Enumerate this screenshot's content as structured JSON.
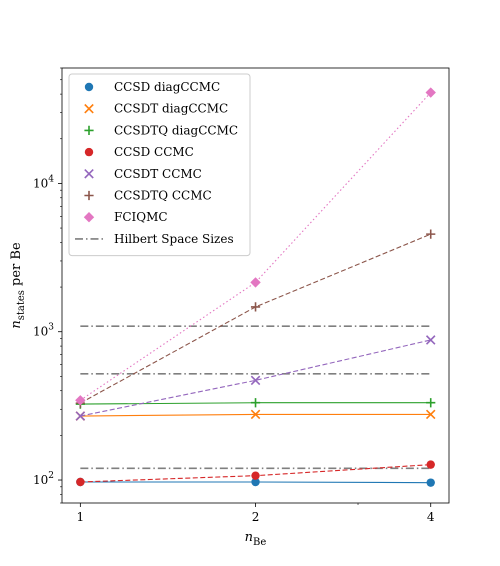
{
  "chart_data": {
    "type": "line",
    "x_scale": "log",
    "y_scale": "log",
    "xlabel": "n",
    "xlabel_sub": "Be",
    "ylabel": "n",
    "ylabel_sub": "states",
    "ylabel_suffix": " per Be",
    "xlim": [
      0.93,
      4.3
    ],
    "ylim": [
      70,
      60000
    ],
    "x_ticks": [
      1,
      2,
      4
    ],
    "x_tick_labels": [
      "1",
      "2",
      "4"
    ],
    "y_ticks": [
      100,
      1000,
      10000
    ],
    "y_tick_labels": [
      {
        "base": "10",
        "exp": "2"
      },
      {
        "base": "10",
        "exp": "3"
      },
      {
        "base": "10",
        "exp": "4"
      }
    ],
    "legend_position": "top-left",
    "series": [
      {
        "name": "CCSD diagCCMC",
        "x": [
          1,
          2,
          4
        ],
        "y": [
          97,
          97,
          96
        ],
        "color": "#1f77b4",
        "marker": "circle",
        "line": "solid"
      },
      {
        "name": "CCSDT diagCCMC",
        "x": [
          1,
          2,
          4
        ],
        "y": [
          270,
          277,
          277
        ],
        "color": "#ff7f0e",
        "marker": "x",
        "line": "solid"
      },
      {
        "name": "CCSDTQ diagCCMC",
        "x": [
          1,
          2,
          4
        ],
        "y": [
          325,
          332,
          332
        ],
        "color": "#2ca02c",
        "marker": "plus",
        "line": "solid"
      },
      {
        "name": "CCSD CCMC",
        "x": [
          1,
          2,
          4
        ],
        "y": [
          97,
          107,
          127
        ],
        "color": "#d62728",
        "marker": "circle",
        "line": "dashed"
      },
      {
        "name": "CCSDT CCMC",
        "x": [
          1,
          2,
          4
        ],
        "y": [
          270,
          470,
          880
        ],
        "color": "#9467bd",
        "marker": "x",
        "line": "dashed"
      },
      {
        "name": "CCSDTQ CCMC",
        "x": [
          1,
          2,
          4
        ],
        "y": [
          330,
          1470,
          4550
        ],
        "color": "#8c564b",
        "marker": "plus",
        "line": "dashed"
      },
      {
        "name": "FCIQMC",
        "x": [
          1,
          2,
          4
        ],
        "y": [
          345,
          2150,
          41000
        ],
        "color": "#e377c2",
        "marker": "diamond",
        "line": "dotted"
      }
    ],
    "hlines": {
      "name": "Hilbert Space Sizes",
      "color": "#7f7f7f",
      "values": [
        120,
        520,
        1090
      ]
    }
  }
}
